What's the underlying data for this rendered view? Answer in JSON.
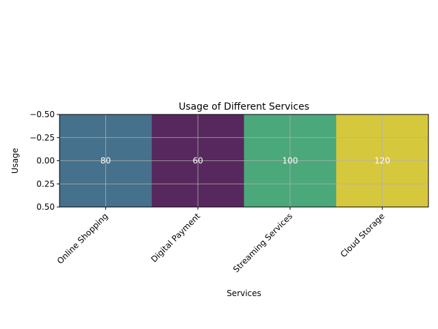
{
  "chart_data": {
    "type": "heatmap",
    "title": "Usage of Different Services",
    "xlabel": "Services",
    "ylabel": "Usage",
    "categories": [
      "Online Shopping",
      "Digital Payment",
      "Streaming Services",
      "Cloud Storage"
    ],
    "values": [
      80,
      60,
      100,
      120
    ],
    "value_labels": [
      "80",
      "60",
      "100",
      "120"
    ],
    "cell_colors": [
      "#46718c",
      "#57285e",
      "#4ba87b",
      "#d6c83c"
    ],
    "yticks": [
      -0.5,
      -0.25,
      0.0,
      0.25,
      0.5
    ],
    "ytick_labels": [
      "−0.50",
      "−0.25",
      "0.00",
      "0.25",
      "0.50"
    ],
    "ylim": [
      0.5,
      -0.5
    ],
    "x_tick_rotation": 45,
    "grid": true,
    "colors": {
      "grid": "#b0b0b0",
      "axes": "#000000"
    }
  }
}
